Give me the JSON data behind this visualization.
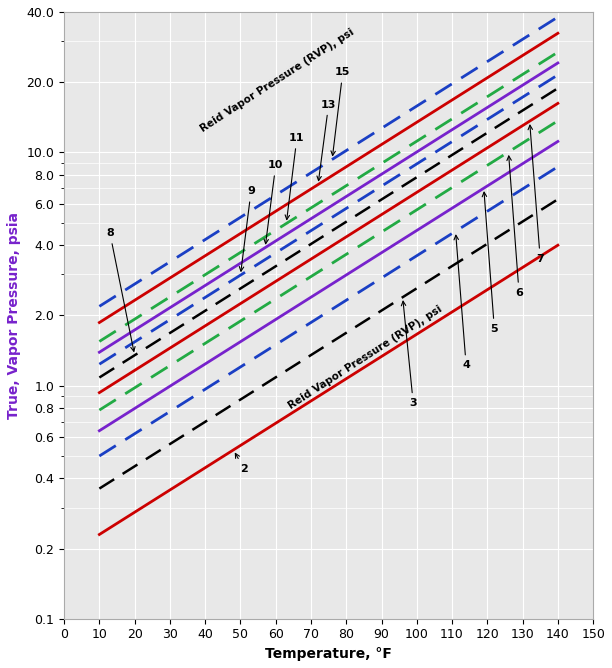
{
  "title": "",
  "xlabel": "Temperature, °F",
  "ylabel": "True, Vapor Pressure, psia",
  "temp_range": [
    10,
    140
  ],
  "ylim": [
    0.1,
    40.0
  ],
  "xlim": [
    0,
    150
  ],
  "yticks_major": [
    0.1,
    0.2,
    0.4,
    0.6,
    0.8,
    1.0,
    2.0,
    4.0,
    6.0,
    8.0,
    10.0,
    20.0,
    40.0
  ],
  "ytick_labels": [
    "0.1",
    "0.2",
    "0.4",
    "0.6",
    "0.8",
    "1.0",
    "2.0",
    "4.0",
    "6.0",
    "8.0",
    "10.0",
    "20.0",
    "40.0"
  ],
  "xticks": [
    0,
    10,
    20,
    30,
    40,
    50,
    60,
    70,
    80,
    90,
    100,
    110,
    120,
    130,
    140,
    150
  ],
  "line_styles": [
    {
      "rvp": 2,
      "color": "#cc0000",
      "linestyle": "solid",
      "linewidth": 2.0
    },
    {
      "rvp": 3,
      "color": "#000000",
      "linestyle": "dashed",
      "linewidth": 1.8
    },
    {
      "rvp": 4,
      "color": "#1a3fc4",
      "linestyle": "dashed",
      "linewidth": 2.0
    },
    {
      "rvp": 5,
      "color": "#7722cc",
      "linestyle": "solid",
      "linewidth": 2.0
    },
    {
      "rvp": 6,
      "color": "#22aa44",
      "linestyle": "dashed",
      "linewidth": 2.0
    },
    {
      "rvp": 7,
      "color": "#cc0000",
      "linestyle": "solid",
      "linewidth": 2.0
    },
    {
      "rvp": 8,
      "color": "#000000",
      "linestyle": "dashed",
      "linewidth": 1.8
    },
    {
      "rvp": 9,
      "color": "#1a3fc4",
      "linestyle": "dashed",
      "linewidth": 2.0
    },
    {
      "rvp": 10,
      "color": "#7722cc",
      "linestyle": "solid",
      "linewidth": 2.0
    },
    {
      "rvp": 11,
      "color": "#22aa44",
      "linestyle": "dashed",
      "linewidth": 2.0
    },
    {
      "rvp": 13,
      "color": "#cc0000",
      "linestyle": "solid",
      "linewidth": 2.0
    },
    {
      "rvp": 15,
      "color": "#1a3fc4",
      "linestyle": "dashed",
      "linewidth": 2.0
    }
  ],
  "a_exp": 1.0,
  "b_exp": 0.02197,
  "c_exp_base": -2.465,
  "background_color": "#e8e8e8",
  "grid_color": "#ffffff",
  "label_color_y": "#7722cc"
}
